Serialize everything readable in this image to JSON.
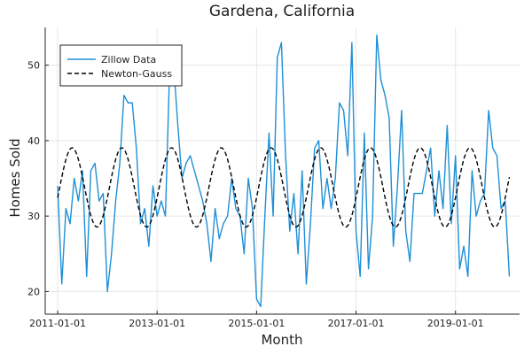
{
  "chart_data": {
    "type": "line",
    "title": "Gardena, California",
    "xlabel": "Month",
    "ylabel": "Homes Sold",
    "xlim": [
      "2010-10-01",
      "2020-04-15"
    ],
    "ylim": [
      17,
      55
    ],
    "xticks": [
      "2011-01-01",
      "2013-01-01",
      "2015-01-01",
      "2017-01-01",
      "2019-01-01"
    ],
    "yticks": [
      20,
      30,
      40,
      50
    ],
    "grid": true,
    "legend_position": "top-left",
    "colors": {
      "zillow": "#1f8fd6",
      "newton": "#000000"
    },
    "series": [
      {
        "name": "Zillow Data",
        "style": "solid",
        "x_start": "2011-01-01",
        "x_step": "1 month",
        "values": [
          34,
          21,
          31,
          29,
          35,
          32,
          36,
          22,
          36,
          37,
          32,
          33,
          20,
          25,
          32,
          37,
          46,
          45,
          45,
          39,
          29,
          31,
          26,
          34,
          30,
          32,
          30,
          49,
          50,
          42,
          35,
          37,
          38,
          36,
          34,
          32,
          29,
          24,
          31,
          27,
          29,
          30,
          35,
          31,
          30,
          25,
          35,
          31,
          19,
          18,
          30,
          41,
          30,
          51,
          53,
          38,
          28,
          33,
          25,
          36,
          21,
          29,
          39,
          40,
          31,
          35,
          31,
          35,
          45,
          44,
          38,
          53,
          28,
          22,
          41,
          23,
          30,
          54,
          48,
          46,
          43,
          26,
          34,
          44,
          28,
          24,
          33,
          33,
          33,
          36,
          39,
          30,
          36,
          31,
          42,
          29,
          38,
          23,
          26,
          22,
          36,
          30,
          32,
          33,
          44,
          39,
          38,
          31,
          32,
          22
        ]
      },
      {
        "name": "Newton-Gauss",
        "style": "dashed",
        "model": {
          "mean": 33.8,
          "amplitude": 5.25,
          "period_months": 12,
          "peak_month_offset": 3.5
        }
      }
    ]
  }
}
